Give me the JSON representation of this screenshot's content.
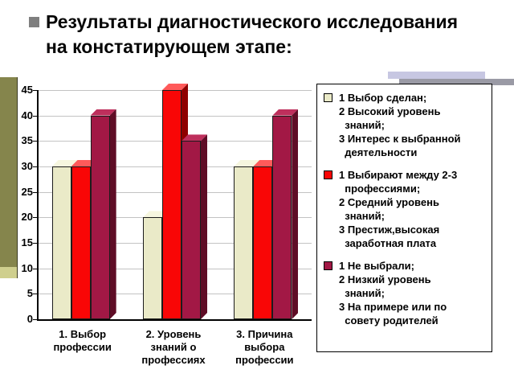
{
  "slide": {
    "title": "Результаты диагностического исследования\nна констатирующем этапе:"
  },
  "chart_data": {
    "type": "bar",
    "projection": "3d",
    "title": "",
    "xlabel": "",
    "ylabel": "",
    "categories": [
      "1. Выбор\nпрофессии",
      "2. Уровень\nзнаний о\nпрофессиях",
      "3. Причина\nвыбора\nпрофессии"
    ],
    "series": [
      {
        "label": "1 Выбор сделан;\n2 Высокий уровень\n  знаний;\n3 Интерес к выбранной\n  деятельности",
        "values": [
          30,
          20,
          30
        ],
        "colors": {
          "front": "#eaeac8",
          "top": "#f6f6df",
          "side": "#a3a379"
        }
      },
      {
        "label": "1 Выбирают между 2-3\n  профессиями;\n2 Средний уровень\n  знаний;\n3 Престиж,высокая\n  заработная плата",
        "values": [
          30,
          45,
          30
        ],
        "colors": {
          "front": "#f90606",
          "top": "#ff5a5a",
          "side": "#8f0000"
        }
      },
      {
        "label": "1 Не выбрали;\n2 Низкий уровень\n  знаний;\n3 На примере или по\n  совету родителей",
        "values": [
          40,
          35,
          40
        ],
        "colors": {
          "front": "#a21845",
          "top": "#be2f5c",
          "side": "#5f0d26"
        }
      }
    ],
    "ylim": [
      0,
      45
    ],
    "yticks": [
      0,
      5,
      10,
      15,
      20,
      25,
      30,
      35,
      40,
      45
    ],
    "grid": true,
    "legend_position": "right"
  }
}
